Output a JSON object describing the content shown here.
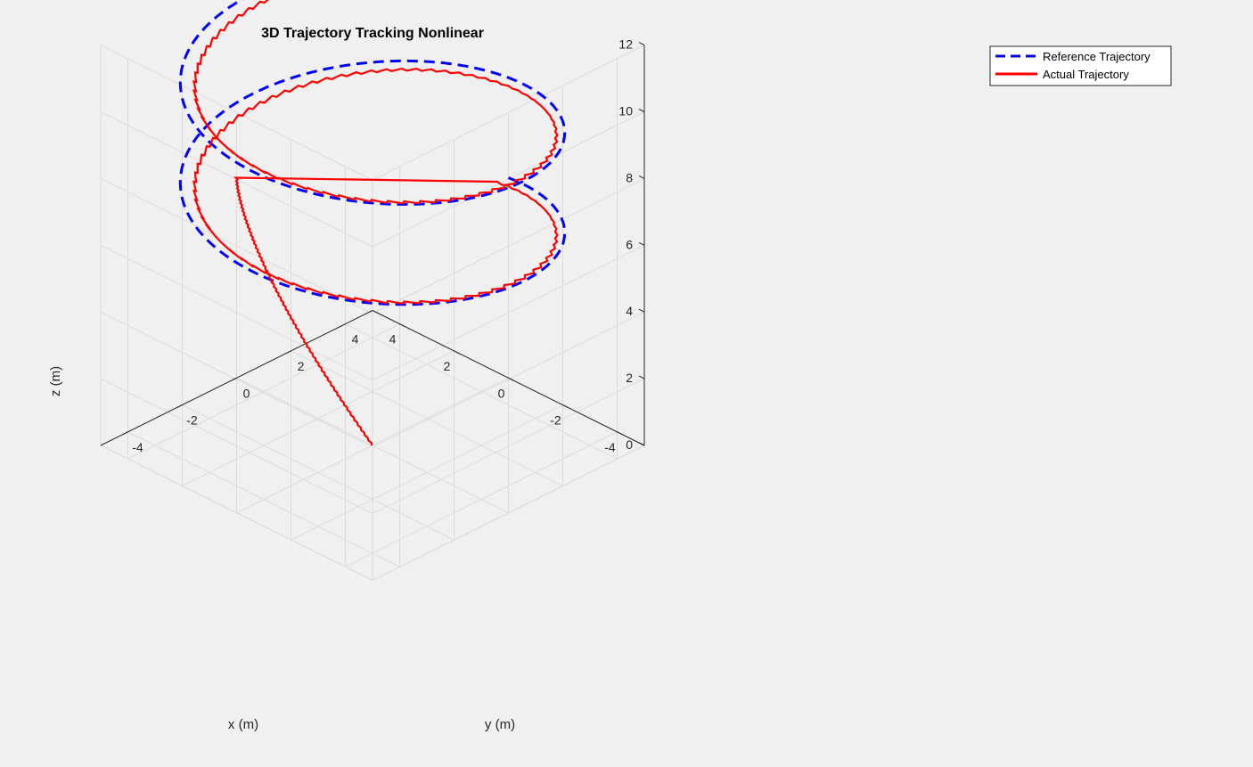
{
  "chart_data": {
    "type": "line",
    "title": "3D Trajectory Tracking Nonlinear",
    "xlabel": "x (m)",
    "ylabel": "y (m)",
    "zlabel": "z (m)",
    "xlim": [
      -5,
      5
    ],
    "ylim": [
      -5,
      5
    ],
    "zlim": [
      0,
      12
    ],
    "xticks": [
      "-4",
      "-2",
      "0",
      "2",
      "4"
    ],
    "yticks": [
      "-4",
      "-2",
      "0",
      "2",
      "4"
    ],
    "zticks": [
      "0",
      "2",
      "4",
      "6",
      "8",
      "10",
      "12"
    ],
    "grid": true,
    "legend_position": "top-right",
    "series": [
      {
        "name": "Reference Trajectory",
        "color": "#0000ff",
        "style": "dashed",
        "helix": {
          "radius": 5,
          "z_start": 6,
          "z_end": 12,
          "turns": 2,
          "phase_start_deg": 90
        }
      },
      {
        "name": "Actual Trajectory",
        "color": "#ff0000",
        "style": "solid",
        "start_point": [
          0,
          0,
          0
        ],
        "join_point": [
          5,
          0,
          6
        ],
        "helix": {
          "radius": 5,
          "z_start": 6,
          "z_end": 12,
          "turns": 2,
          "phase_start_deg": 90,
          "lag": 0.1
        }
      }
    ]
  }
}
